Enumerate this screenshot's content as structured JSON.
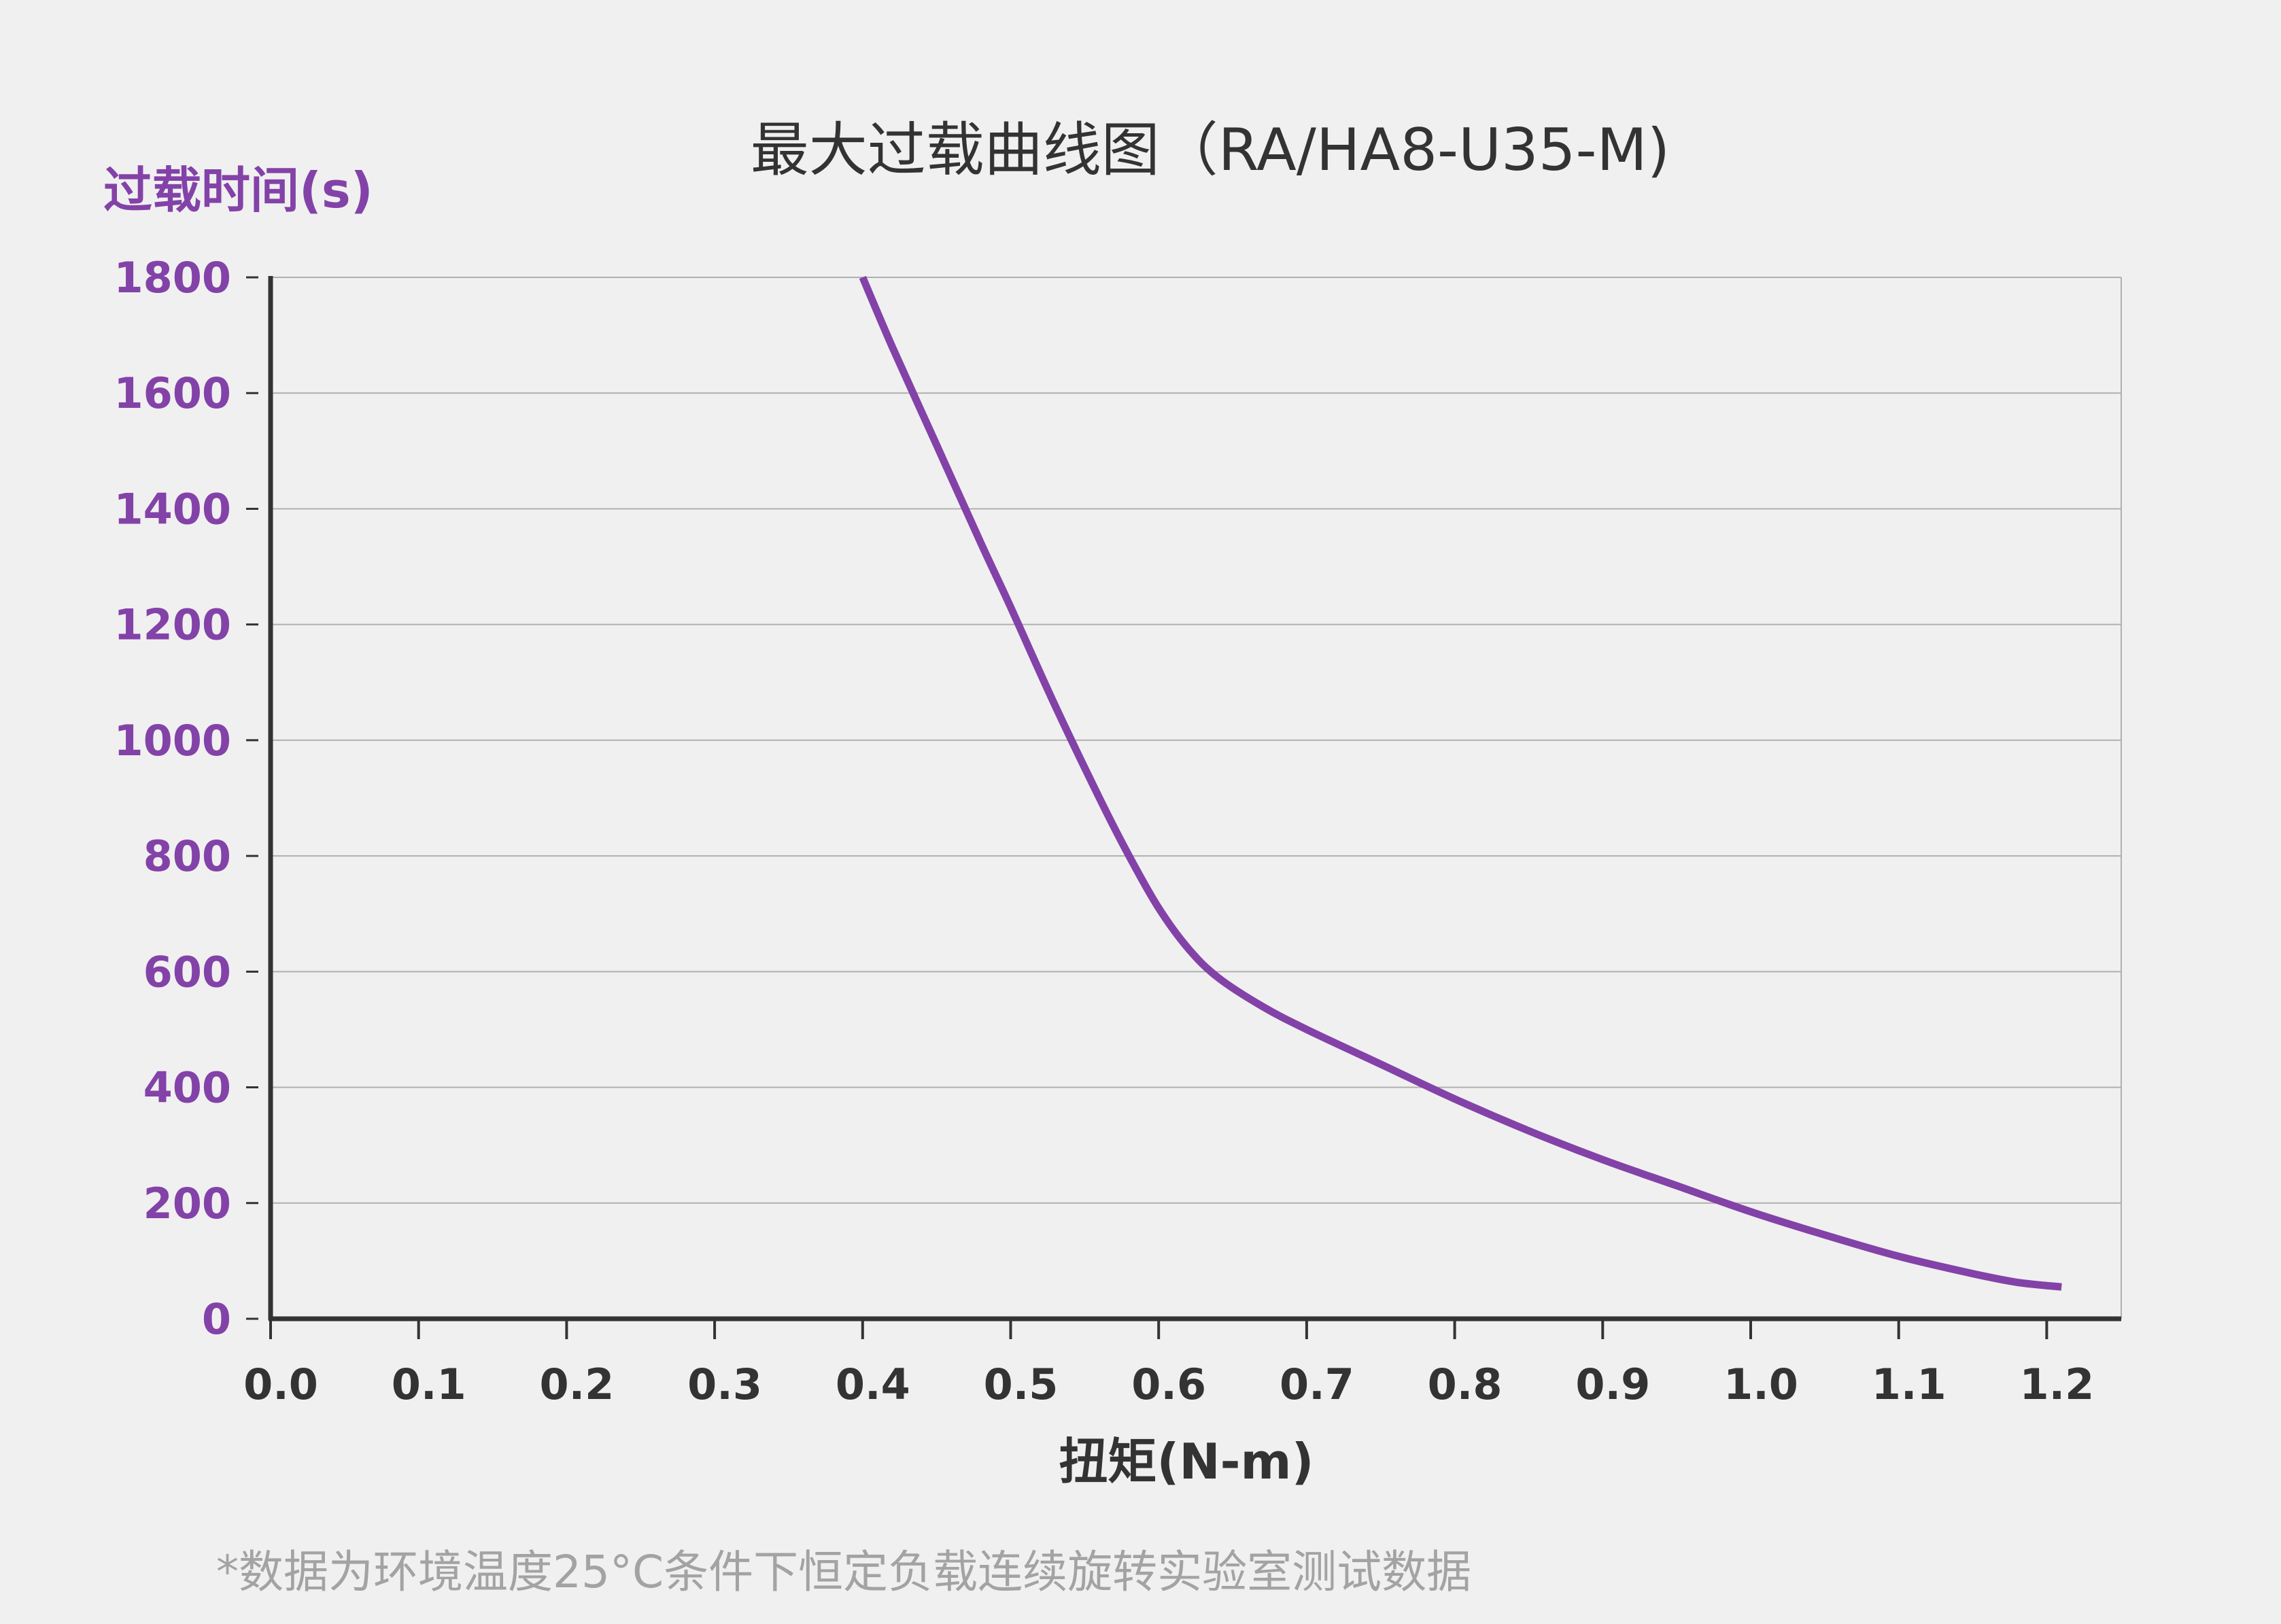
{
  "colors": {
    "background": "#f0f0f0",
    "series": "#8342a8",
    "axis": "#333333",
    "grid": "#b0b0b0",
    "ytick": "#8342a8",
    "note": "#a3a3a3"
  },
  "chart_data": {
    "type": "line",
    "title": "最大过载曲线图（RA/HA8-U35-M)",
    "ylabel": "过载时间(s)",
    "xlabel": "扭矩(N-m)",
    "note": "*数据为环境温度25°C条件下恒定负载连续旋转实验室测试数据",
    "xlim": [
      0.0,
      1.25
    ],
    "ylim": [
      0,
      1800
    ],
    "grid": true,
    "xticks": [
      {
        "value": 0.0,
        "label": "0.0"
      },
      {
        "value": 0.1,
        "label": "0.1"
      },
      {
        "value": 0.2,
        "label": "0.2"
      },
      {
        "value": 0.3,
        "label": "0.3"
      },
      {
        "value": 0.4,
        "label": "0.4"
      },
      {
        "value": 0.5,
        "label": "0.5"
      },
      {
        "value": 0.6,
        "label": "0.6"
      },
      {
        "value": 0.7,
        "label": "0.7"
      },
      {
        "value": 0.8,
        "label": "0.8"
      },
      {
        "value": 0.9,
        "label": "0.9"
      },
      {
        "value": 1.0,
        "label": "1.0"
      },
      {
        "value": 1.1,
        "label": "1.1"
      },
      {
        "value": 1.2,
        "label": "1.2"
      }
    ],
    "yticks": [
      {
        "value": 0,
        "label": "0"
      },
      {
        "value": 200,
        "label": "200"
      },
      {
        "value": 400,
        "label": "400"
      },
      {
        "value": 600,
        "label": "600"
      },
      {
        "value": 800,
        "label": "800"
      },
      {
        "value": 1000,
        "label": "1000"
      },
      {
        "value": 1200,
        "label": "1200"
      },
      {
        "value": 1400,
        "label": "1400"
      },
      {
        "value": 1600,
        "label": "1600"
      },
      {
        "value": 1800,
        "label": "1800"
      }
    ],
    "series": [
      {
        "x": [
          0.4,
          0.42,
          0.45,
          0.48,
          0.5,
          0.53,
          0.56,
          0.58,
          0.6,
          0.62,
          0.64,
          0.67,
          0.7,
          0.75,
          0.8,
          0.85,
          0.9,
          0.95,
          1.0,
          1.05,
          1.1,
          1.15,
          1.18,
          1.21
        ],
        "y": [
          1800,
          1680,
          1510,
          1340,
          1230,
          1060,
          900,
          800,
          710,
          640,
          590,
          540,
          500,
          440,
          380,
          325,
          275,
          230,
          185,
          145,
          108,
          78,
          63,
          55
        ]
      }
    ]
  }
}
